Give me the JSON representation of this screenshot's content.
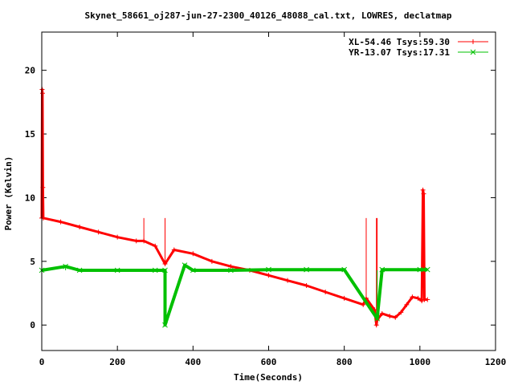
{
  "chart_data": {
    "type": "line",
    "title": "Skynet_58661_oj287-jun-27-2300_40126_48088_cal.txt, LOWRES, declatmap",
    "xlabel": "Time(Seconds)",
    "ylabel": "Power (Kelvin)",
    "xlim": [
      0,
      1200
    ],
    "ylim": [
      -2,
      23
    ],
    "xticks": [
      0,
      200,
      400,
      600,
      800,
      1000,
      1200
    ],
    "yticks": [
      0,
      5,
      10,
      15,
      20
    ],
    "grid": false,
    "legend_position": "top-right",
    "series": [
      {
        "name": "XL-54.46 Tsys:59.30",
        "color": "#ff0000",
        "marker": "plus",
        "points": [
          [
            0,
            8.4
          ],
          [
            1,
            18.5
          ],
          [
            2,
            18.2
          ],
          [
            3,
            10.8
          ],
          [
            4,
            8.4
          ],
          [
            50,
            8.1
          ],
          [
            100,
            7.7
          ],
          [
            150,
            7.3
          ],
          [
            200,
            6.9
          ],
          [
            250,
            6.6
          ],
          [
            300,
            6.2
          ],
          [
            350,
            5.9
          ],
          [
            400,
            5.6
          ],
          [
            450,
            5.0
          ],
          [
            500,
            4.6
          ],
          [
            550,
            4.3
          ],
          [
            600,
            3.9
          ],
          [
            650,
            3.5
          ],
          [
            700,
            3.1
          ],
          [
            750,
            2.6
          ],
          [
            800,
            2.1
          ],
          [
            850,
            1.6
          ],
          [
            880,
            1.2
          ],
          [
            900,
            0.9
          ],
          [
            920,
            0.7
          ],
          [
            935,
            0.6
          ],
          [
            950,
            1.0
          ],
          [
            965,
            1.6
          ],
          [
            980,
            2.2
          ],
          [
            995,
            2.1
          ],
          [
            1005,
            1.9
          ],
          [
            1008,
            10.6
          ],
          [
            1010,
            10.3
          ],
          [
            1012,
            2.0
          ],
          [
            1020,
            2.0
          ]
        ],
        "outliers": [
          [
            270,
            6.6
          ],
          [
            326,
            4.8
          ],
          [
            858,
            2.1
          ],
          [
            885,
            0.0
          ],
          [
            887,
            0.4
          ]
        ]
      },
      {
        "name": "YR-13.07 Tsys:17.31",
        "color": "#00c000",
        "marker": "cross",
        "points": [
          [
            0,
            4.3
          ],
          [
            100,
            4.3
          ],
          [
            200,
            4.3
          ],
          [
            300,
            4.3
          ],
          [
            326,
            4.3
          ],
          [
            400,
            4.3
          ],
          [
            500,
            4.3
          ],
          [
            600,
            4.35
          ],
          [
            700,
            4.35
          ],
          [
            800,
            4.35
          ],
          [
            900,
            4.35
          ],
          [
            1000,
            4.35
          ],
          [
            1020,
            4.35
          ]
        ],
        "outliers": [
          [
            63,
            4.6
          ],
          [
            326,
            0.0
          ],
          [
            378,
            4.7
          ],
          [
            887,
            0.5
          ]
        ]
      }
    ]
  }
}
